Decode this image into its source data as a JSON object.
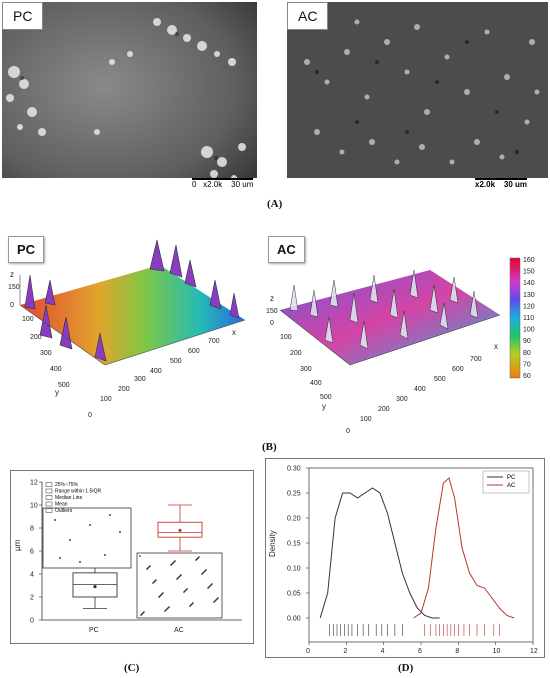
{
  "panelA": {
    "left_label": "PC",
    "right_label": "AC",
    "left_scale": "0   x2.0k    30 um",
    "right_scale": "x2.0k    30 um",
    "caption": "(A)"
  },
  "panelB": {
    "left_label": "PC",
    "right_label": "AC",
    "caption": "(B)",
    "axis_z": "z",
    "axis_x": "x",
    "axis_y": "y",
    "colorbar_ticks": [
      "160",
      "150",
      "140",
      "130",
      "120",
      "110",
      "100",
      "90",
      "80",
      "70",
      "60"
    ],
    "colors": {
      "high": "#e8002a",
      "mid": "#22c46a",
      "low": "#f07a18"
    }
  },
  "panelC": {
    "caption": "(C)",
    "ylabel": "µm",
    "legend": [
      "25%~75%",
      "Range within 1.5IQR",
      "Median Line",
      "Mean",
      "Outliers"
    ],
    "chart_data": {
      "type": "box",
      "categories": [
        "PC",
        "AC"
      ],
      "series": [
        {
          "name": "PC",
          "whisker_low": 1.0,
          "q1": 2.0,
          "median": 3.1,
          "mean": 2.9,
          "q3": 4.1,
          "whisker_high": 5.0,
          "color": "#333333"
        },
        {
          "name": "AC",
          "whisker_low": 6.0,
          "q1": 7.2,
          "median": 7.6,
          "mean": 7.8,
          "q3": 8.5,
          "whisker_high": 10.0,
          "color": "#c0392b"
        }
      ],
      "ylim": [
        0,
        12
      ],
      "yticks": [
        "0",
        "2",
        "4",
        "6",
        "8",
        "10",
        "12"
      ]
    }
  },
  "panelD": {
    "caption": "(D)",
    "chart_data": {
      "type": "line",
      "title": "",
      "xlabel": "µm",
      "ylabel": "Density",
      "xlim": [
        0,
        12
      ],
      "ylim": [
        0,
        0.3
      ],
      "xticks": [
        "0",
        "2",
        "4",
        "6",
        "8",
        "10",
        "12"
      ],
      "yticks": [
        "0.00",
        "0.05",
        "0.10",
        "0.15",
        "0.20",
        "0.25",
        "0.30"
      ],
      "legend": [
        "PC",
        "AC"
      ],
      "series": [
        {
          "name": "PC",
          "color": "#333333",
          "x": [
            0.6,
            1.0,
            1.4,
            1.8,
            2.2,
            2.6,
            3.0,
            3.4,
            3.8,
            4.2,
            4.6,
            5.0,
            5.4,
            5.8,
            6.2,
            6.6,
            7.0
          ],
          "y": [
            0.0,
            0.05,
            0.2,
            0.25,
            0.25,
            0.24,
            0.25,
            0.26,
            0.25,
            0.21,
            0.15,
            0.09,
            0.05,
            0.02,
            0.005,
            0.0,
            0.0
          ]
        },
        {
          "name": "AC",
          "color": "#b2392b",
          "x": [
            5.6,
            6.0,
            6.4,
            6.8,
            7.2,
            7.5,
            7.8,
            8.2,
            8.6,
            9.0,
            9.4,
            9.8,
            10.2,
            10.6,
            11.0
          ],
          "y": [
            0.0,
            0.01,
            0.06,
            0.18,
            0.27,
            0.28,
            0.24,
            0.14,
            0.09,
            0.065,
            0.06,
            0.04,
            0.02,
            0.005,
            0.0
          ]
        }
      ],
      "rug_PC": [
        1.1,
        1.3,
        1.5,
        1.7,
        1.9,
        2.1,
        2.3,
        2.6,
        2.9,
        3.2,
        3.6,
        3.9,
        4.2,
        4.6,
        5.0
      ],
      "rug_AC": [
        6.2,
        6.5,
        6.8,
        7.0,
        7.2,
        7.4,
        7.6,
        7.8,
        8.0,
        8.3,
        8.6,
        9.0,
        9.4,
        9.9,
        10.2
      ]
    }
  }
}
